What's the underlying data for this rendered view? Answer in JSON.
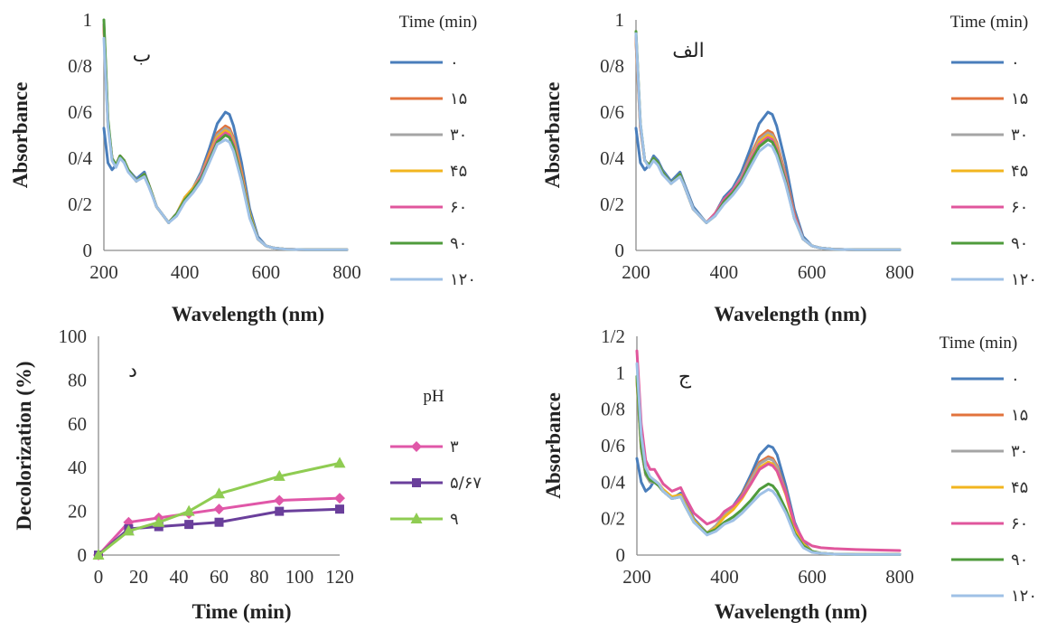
{
  "figure": {
    "panels": [
      {
        "id": "top-left",
        "label": "ب"
      },
      {
        "id": "top-right",
        "label": "الف"
      },
      {
        "id": "bottom-right",
        "label": "ج"
      },
      {
        "id": "bottom-left",
        "label": "د"
      }
    ]
  },
  "colors": {
    "series": [
      "#4a7ebb",
      "#e2733d",
      "#a5a5a5",
      "#f2b51f",
      "#e0569c",
      "#4f9b3c",
      "#9fc1e6"
    ],
    "ph": [
      "#e057a8",
      "#6a3f9b",
      "#8fcc52"
    ]
  },
  "chart_data": [
    {
      "type": "line",
      "panel_label": "ب",
      "xlabel": "Wavelength (nm)",
      "ylabel": "Absorbance",
      "xlim": [
        200,
        800
      ],
      "ylim": [
        0,
        1
      ],
      "xticks": [
        200,
        400,
        600,
        800
      ],
      "xtick_labels": [
        "200",
        "400",
        "600",
        "800"
      ],
      "yticks": [
        0,
        0.2,
        0.4,
        0.6,
        0.8,
        1
      ],
      "ytick_labels": [
        "0",
        "0/2",
        "0/4",
        "0/6",
        "0/8",
        "1"
      ],
      "legend_title": "Time (min)",
      "legend_position": "right",
      "x": [
        200,
        210,
        220,
        230,
        240,
        250,
        260,
        280,
        300,
        310,
        330,
        360,
        380,
        400,
        420,
        440,
        460,
        480,
        500,
        510,
        520,
        540,
        560,
        580,
        600,
        620,
        650,
        700,
        800
      ],
      "series": [
        {
          "name": "۰",
          "values": [
            0.53,
            0.38,
            0.35,
            0.37,
            0.4,
            0.39,
            0.35,
            0.31,
            0.34,
            0.29,
            0.19,
            0.12,
            0.16,
            0.23,
            0.27,
            0.34,
            0.44,
            0.55,
            0.6,
            0.59,
            0.54,
            0.38,
            0.18,
            0.06,
            0.02,
            0.01,
            0.005,
            0.003,
            0.003
          ]
        },
        {
          "name": "۱۵",
          "values": [
            0.97,
            0.55,
            0.4,
            0.37,
            0.41,
            0.39,
            0.35,
            0.3,
            0.33,
            0.29,
            0.19,
            0.12,
            0.16,
            0.23,
            0.27,
            0.33,
            0.42,
            0.51,
            0.54,
            0.53,
            0.49,
            0.34,
            0.16,
            0.05,
            0.02,
            0.01,
            0.005,
            0.003,
            0.003
          ]
        },
        {
          "name": "۳۰",
          "values": [
            0.97,
            0.55,
            0.4,
            0.37,
            0.41,
            0.39,
            0.35,
            0.3,
            0.33,
            0.29,
            0.19,
            0.12,
            0.16,
            0.23,
            0.27,
            0.33,
            0.41,
            0.5,
            0.53,
            0.52,
            0.48,
            0.33,
            0.16,
            0.05,
            0.02,
            0.01,
            0.005,
            0.003,
            0.003
          ]
        },
        {
          "name": "۴۵",
          "values": [
            0.97,
            0.55,
            0.4,
            0.37,
            0.41,
            0.39,
            0.35,
            0.3,
            0.33,
            0.29,
            0.19,
            0.12,
            0.16,
            0.23,
            0.27,
            0.32,
            0.41,
            0.49,
            0.52,
            0.51,
            0.47,
            0.33,
            0.16,
            0.05,
            0.02,
            0.01,
            0.005,
            0.003,
            0.003
          ]
        },
        {
          "name": "۶۰",
          "values": [
            0.98,
            0.56,
            0.4,
            0.37,
            0.41,
            0.39,
            0.35,
            0.3,
            0.33,
            0.29,
            0.19,
            0.12,
            0.16,
            0.22,
            0.26,
            0.32,
            0.4,
            0.48,
            0.51,
            0.5,
            0.46,
            0.32,
            0.15,
            0.05,
            0.02,
            0.01,
            0.005,
            0.003,
            0.003
          ]
        },
        {
          "name": "۹۰",
          "values": [
            1.0,
            0.57,
            0.4,
            0.37,
            0.41,
            0.39,
            0.35,
            0.3,
            0.33,
            0.29,
            0.19,
            0.12,
            0.16,
            0.22,
            0.26,
            0.31,
            0.39,
            0.47,
            0.5,
            0.49,
            0.45,
            0.31,
            0.15,
            0.05,
            0.02,
            0.01,
            0.005,
            0.003,
            0.003
          ]
        },
        {
          "name": "۱۲۰",
          "values": [
            0.92,
            0.54,
            0.39,
            0.36,
            0.4,
            0.38,
            0.34,
            0.3,
            0.32,
            0.28,
            0.19,
            0.12,
            0.15,
            0.21,
            0.25,
            0.3,
            0.38,
            0.46,
            0.48,
            0.47,
            0.43,
            0.3,
            0.14,
            0.05,
            0.02,
            0.01,
            0.005,
            0.003,
            0.003
          ]
        }
      ]
    },
    {
      "type": "line",
      "panel_label": "الف",
      "xlabel": "Wavelength (nm)",
      "ylabel": "Absorbance",
      "xlim": [
        200,
        800
      ],
      "ylim": [
        0,
        1
      ],
      "xticks": [
        200,
        400,
        600,
        800
      ],
      "xtick_labels": [
        "200",
        "400",
        "600",
        "800"
      ],
      "yticks": [
        0,
        0.2,
        0.4,
        0.6,
        0.8,
        1
      ],
      "ytick_labels": [
        "0",
        "0/2",
        "0/4",
        "0/6",
        "0/8",
        "1"
      ],
      "legend_title": "Time (min)",
      "legend_position": "right",
      "x": [
        200,
        210,
        220,
        230,
        240,
        250,
        260,
        280,
        300,
        310,
        330,
        360,
        380,
        400,
        420,
        440,
        460,
        480,
        500,
        510,
        520,
        540,
        560,
        580,
        600,
        620,
        650,
        700,
        800
      ],
      "series": [
        {
          "name": "۰",
          "values": [
            0.53,
            0.38,
            0.35,
            0.37,
            0.41,
            0.39,
            0.35,
            0.3,
            0.34,
            0.29,
            0.19,
            0.12,
            0.16,
            0.23,
            0.27,
            0.34,
            0.44,
            0.55,
            0.6,
            0.59,
            0.54,
            0.38,
            0.18,
            0.06,
            0.02,
            0.01,
            0.005,
            0.003,
            0.003
          ]
        },
        {
          "name": "۱۵",
          "values": [
            0.9,
            0.53,
            0.39,
            0.37,
            0.4,
            0.38,
            0.34,
            0.29,
            0.33,
            0.28,
            0.18,
            0.12,
            0.16,
            0.22,
            0.26,
            0.32,
            0.41,
            0.49,
            0.52,
            0.51,
            0.47,
            0.33,
            0.16,
            0.05,
            0.02,
            0.01,
            0.005,
            0.003,
            0.003
          ]
        },
        {
          "name": "۳۰",
          "values": [
            0.91,
            0.53,
            0.39,
            0.37,
            0.4,
            0.38,
            0.34,
            0.29,
            0.33,
            0.28,
            0.18,
            0.12,
            0.16,
            0.22,
            0.26,
            0.32,
            0.4,
            0.48,
            0.51,
            0.5,
            0.46,
            0.32,
            0.15,
            0.05,
            0.02,
            0.01,
            0.005,
            0.003,
            0.003
          ]
        },
        {
          "name": "۴۵",
          "values": [
            0.92,
            0.54,
            0.39,
            0.37,
            0.4,
            0.38,
            0.34,
            0.29,
            0.33,
            0.28,
            0.18,
            0.12,
            0.16,
            0.22,
            0.26,
            0.31,
            0.39,
            0.47,
            0.5,
            0.49,
            0.45,
            0.31,
            0.15,
            0.05,
            0.02,
            0.01,
            0.005,
            0.003,
            0.003
          ]
        },
        {
          "name": "۶۰",
          "values": [
            0.93,
            0.54,
            0.39,
            0.37,
            0.4,
            0.38,
            0.34,
            0.29,
            0.33,
            0.28,
            0.18,
            0.12,
            0.16,
            0.22,
            0.26,
            0.31,
            0.39,
            0.46,
            0.49,
            0.48,
            0.44,
            0.31,
            0.15,
            0.05,
            0.02,
            0.01,
            0.005,
            0.003,
            0.003
          ]
        },
        {
          "name": "۹۰",
          "values": [
            0.95,
            0.55,
            0.39,
            0.37,
            0.4,
            0.38,
            0.34,
            0.29,
            0.33,
            0.28,
            0.18,
            0.12,
            0.15,
            0.21,
            0.25,
            0.3,
            0.38,
            0.45,
            0.48,
            0.47,
            0.43,
            0.3,
            0.14,
            0.05,
            0.02,
            0.01,
            0.005,
            0.003,
            0.003
          ]
        },
        {
          "name": "۱۲۰",
          "values": [
            0.94,
            0.55,
            0.39,
            0.36,
            0.39,
            0.37,
            0.33,
            0.29,
            0.32,
            0.28,
            0.18,
            0.12,
            0.15,
            0.2,
            0.24,
            0.29,
            0.36,
            0.43,
            0.46,
            0.45,
            0.41,
            0.29,
            0.14,
            0.05,
            0.02,
            0.01,
            0.005,
            0.003,
            0.003
          ]
        }
      ]
    },
    {
      "type": "line",
      "panel_label": "ج",
      "xlabel": "Wavelength (nm)",
      "ylabel": "Absorbance",
      "xlim": [
        200,
        800
      ],
      "ylim": [
        0,
        1.2
      ],
      "xticks": [
        200,
        400,
        600,
        800
      ],
      "xtick_labels": [
        "200",
        "400",
        "600",
        "800"
      ],
      "yticks": [
        0,
        0.2,
        0.4,
        0.6,
        0.8,
        1,
        1.2
      ],
      "ytick_labels": [
        "0",
        "0/2",
        "0/4",
        "0/6",
        "0/8",
        "1",
        "1/2"
      ],
      "legend_title": "Time (min)",
      "legend_position": "right",
      "x": [
        200,
        210,
        220,
        230,
        240,
        250,
        260,
        280,
        300,
        310,
        330,
        360,
        380,
        390,
        400,
        420,
        440,
        460,
        480,
        500,
        510,
        520,
        540,
        560,
        580,
        600,
        620,
        650,
        700,
        800
      ],
      "series": [
        {
          "name": "۰",
          "values": [
            0.53,
            0.4,
            0.35,
            0.37,
            0.41,
            0.39,
            0.35,
            0.31,
            0.34,
            0.29,
            0.2,
            0.12,
            0.16,
            0.19,
            0.22,
            0.27,
            0.34,
            0.44,
            0.55,
            0.6,
            0.59,
            0.55,
            0.38,
            0.18,
            0.07,
            0.02,
            0.01,
            0.005,
            0.003,
            0.003
          ]
        },
        {
          "name": "۱۵",
          "values": [
            0.95,
            0.58,
            0.44,
            0.4,
            0.4,
            0.38,
            0.35,
            0.31,
            0.33,
            0.28,
            0.19,
            0.12,
            0.16,
            0.19,
            0.22,
            0.26,
            0.33,
            0.42,
            0.51,
            0.54,
            0.53,
            0.49,
            0.35,
            0.16,
            0.06,
            0.02,
            0.01,
            0.005,
            0.003,
            0.003
          ]
        },
        {
          "name": "۳۰",
          "values": [
            0.96,
            0.58,
            0.44,
            0.4,
            0.4,
            0.38,
            0.35,
            0.31,
            0.33,
            0.28,
            0.19,
            0.12,
            0.16,
            0.19,
            0.22,
            0.26,
            0.32,
            0.41,
            0.5,
            0.53,
            0.52,
            0.48,
            0.34,
            0.16,
            0.06,
            0.02,
            0.01,
            0.005,
            0.003,
            0.003
          ]
        },
        {
          "name": "۴۵",
          "values": [
            0.97,
            0.6,
            0.46,
            0.42,
            0.41,
            0.39,
            0.36,
            0.32,
            0.33,
            0.28,
            0.19,
            0.12,
            0.15,
            0.18,
            0.21,
            0.25,
            0.31,
            0.39,
            0.48,
            0.51,
            0.5,
            0.46,
            0.33,
            0.15,
            0.06,
            0.02,
            0.01,
            0.005,
            0.003,
            0.003
          ]
        },
        {
          "name": "۶۰",
          "values": [
            1.12,
            0.72,
            0.52,
            0.47,
            0.47,
            0.43,
            0.39,
            0.35,
            0.37,
            0.32,
            0.23,
            0.17,
            0.19,
            0.21,
            0.24,
            0.27,
            0.32,
            0.39,
            0.47,
            0.5,
            0.49,
            0.46,
            0.34,
            0.17,
            0.08,
            0.05,
            0.04,
            0.035,
            0.03,
            0.025
          ]
        },
        {
          "name": "۹۰",
          "values": [
            0.98,
            0.6,
            0.45,
            0.41,
            0.4,
            0.38,
            0.35,
            0.31,
            0.32,
            0.27,
            0.18,
            0.12,
            0.14,
            0.16,
            0.18,
            0.21,
            0.25,
            0.3,
            0.36,
            0.39,
            0.38,
            0.35,
            0.25,
            0.12,
            0.05,
            0.02,
            0.01,
            0.005,
            0.003,
            0.003
          ]
        },
        {
          "name": "۱۲۰",
          "values": [
            1.05,
            0.66,
            0.48,
            0.43,
            0.41,
            0.39,
            0.35,
            0.31,
            0.32,
            0.27,
            0.18,
            0.11,
            0.13,
            0.15,
            0.17,
            0.19,
            0.23,
            0.28,
            0.33,
            0.36,
            0.35,
            0.32,
            0.23,
            0.11,
            0.04,
            0.015,
            0.01,
            0.005,
            0.003,
            0.003
          ]
        }
      ]
    },
    {
      "type": "line",
      "panel_label": "د",
      "xlabel": "Time (min)",
      "ylabel": "Decolorization (%)",
      "xlim": [
        0,
        120
      ],
      "ylim": [
        0,
        100
      ],
      "xticks": [
        0,
        20,
        40,
        60,
        80,
        100,
        120
      ],
      "xtick_labels": [
        "0",
        "20",
        "40",
        "60",
        "80",
        "100",
        "120"
      ],
      "yticks": [
        0,
        20,
        40,
        60,
        80,
        100
      ],
      "ytick_labels": [
        "0",
        "20",
        "40",
        "60",
        "80",
        "100"
      ],
      "legend_title": "pH",
      "legend_position": "right",
      "x": [
        0,
        15,
        30,
        45,
        60,
        90,
        120
      ],
      "series": [
        {
          "name": "۳",
          "marker": "diamond",
          "values": [
            0,
            15,
            17,
            19,
            21,
            25,
            26
          ]
        },
        {
          "name": "۵/۶۷",
          "marker": "square",
          "values": [
            0,
            12,
            13,
            14,
            15,
            20,
            21
          ]
        },
        {
          "name": "۹",
          "marker": "triangle",
          "values": [
            0,
            11,
            15,
            20,
            28,
            36,
            42
          ]
        }
      ]
    }
  ]
}
